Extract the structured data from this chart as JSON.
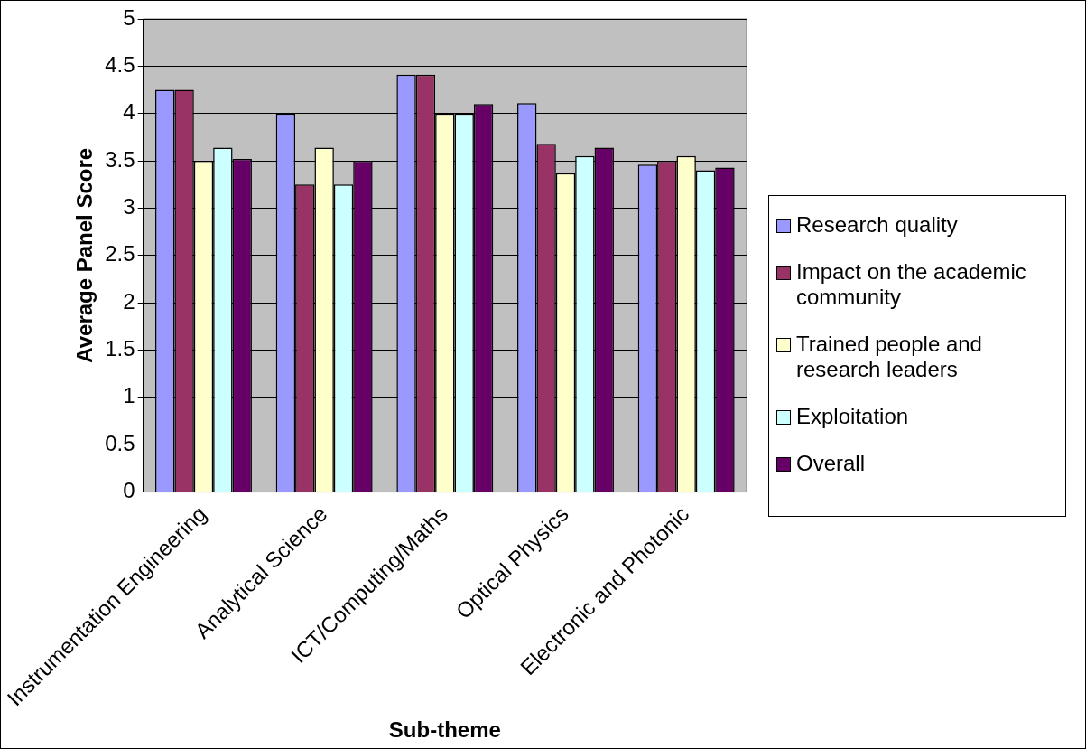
{
  "chart_data": {
    "type": "bar",
    "xlabel": "Sub-theme",
    "ylabel": "Average Panel Score",
    "categories": [
      "Instrumentation Engineering",
      "Analytical Science",
      "ICT/Computing/Maths",
      "Optical Physics",
      "Electronic and Photonic"
    ],
    "series": [
      {
        "name": "Research quality",
        "color": "#9999ff",
        "values": [
          4.25,
          4.0,
          4.41,
          4.11,
          3.46
        ]
      },
      {
        "name": "Impact on the academic community",
        "color": "#993366",
        "values": [
          4.25,
          3.25,
          4.41,
          3.68,
          3.5
        ]
      },
      {
        "name": "Trained people and research leaders",
        "color": "#ffffcc",
        "values": [
          3.5,
          3.64,
          4.0,
          3.37,
          3.55
        ]
      },
      {
        "name": "Exploitation",
        "color": "#ccffff",
        "values": [
          3.64,
          3.25,
          4.0,
          3.55,
          3.4
        ]
      },
      {
        "name": "Overall",
        "color": "#660066",
        "values": [
          3.52,
          3.5,
          4.1,
          3.64,
          3.43
        ]
      }
    ],
    "ylim": [
      0,
      5
    ],
    "yticks": [
      0,
      0.5,
      1,
      1.5,
      2,
      2.5,
      3,
      3.5,
      4,
      4.5,
      5
    ],
    "grid": "y",
    "legend": "right"
  }
}
